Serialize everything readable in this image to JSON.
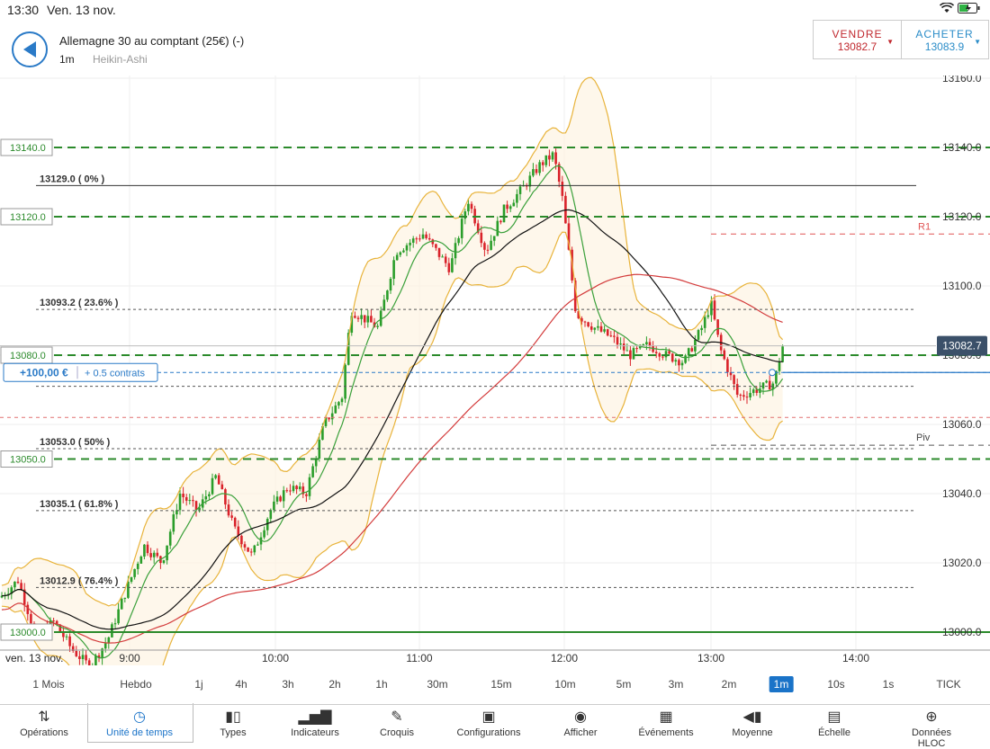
{
  "status": {
    "time": "13:30",
    "date": "Ven. 13 nov.",
    "battery_icon": "battery-charging-icon",
    "wifi_icon": "wifi-icon"
  },
  "header": {
    "title": "Allemagne 30 au comptant (25€) (-)",
    "timeframe": "1m",
    "chart_type": "Heikin-Ashi"
  },
  "trade": {
    "sell_label": "VENDRE",
    "sell_price": "13082.7",
    "buy_label": "ACHETER",
    "buy_price": "13083.9",
    "sell_color": "#c0272d",
    "buy_color": "#2a8cc8"
  },
  "chart_data": {
    "type": "candlestick",
    "price_axis": {
      "ylim": [
        12996,
        13166
      ],
      "ticks": [
        "13160.0",
        "13140.0",
        "13120.0",
        "13100.0",
        "13080.0",
        "13060.0",
        "13040.0",
        "13020.0",
        "13000.0"
      ]
    },
    "time_axis": {
      "date_label": "ven. 13 nov.",
      "ticks": [
        "9:00",
        "10:00",
        "11:00",
        "12:00",
        "13:00",
        "14:00"
      ]
    },
    "current_price": "13082.7",
    "fib_levels": [
      "13129.0 ( 0% )",
      "13093.2 ( 23.6% )",
      "13053.0 ( 50% )",
      "13035.1 ( 61.8% )",
      "13012.9 ( 76.4% )"
    ],
    "alert_levels": [
      "13140.0",
      "13120.0",
      "13080.0",
      "13050.0",
      "13000.0"
    ],
    "pivot_labels": [
      "R1",
      "Piv"
    ],
    "position": {
      "pnl": "+100,00 €",
      "size": "+ 0.5 contrats"
    },
    "colors": {
      "up": "#2a9d2a",
      "down": "#d9222a",
      "bollinger": "#e8b33a",
      "ma_black": "#111111",
      "ma_red": "#d33b3b",
      "ma_green": "#3aa03a",
      "dashed_green": "#2b8a2b"
    }
  },
  "timeframes": [
    "1 Mois",
    "Hebdo",
    "1j",
    "4h",
    "3h",
    "2h",
    "1h",
    "30m",
    "15m",
    "10m",
    "5m",
    "3m",
    "2m",
    "1m",
    "10s",
    "1s",
    "TICK"
  ],
  "selected_timeframe": "1m",
  "toolbar": [
    {
      "label": "Opérations",
      "icon": "swap-arrows-icon"
    },
    {
      "label": "Unité de temps",
      "icon": "clock-icon"
    },
    {
      "label": "Types",
      "icon": "candles-icon"
    },
    {
      "label": "Indicateurs",
      "icon": "bar-chart-icon"
    },
    {
      "label": "Croquis",
      "icon": "pencil-icon"
    },
    {
      "label": "Configurations",
      "icon": "layout-icon"
    },
    {
      "label": "Afficher",
      "icon": "eye-icon"
    },
    {
      "label": "Événements",
      "icon": "calendar-icon"
    },
    {
      "label": "Moyenne",
      "icon": "average-icon"
    },
    {
      "label": "Échelle",
      "icon": "scale-icon"
    },
    {
      "label": "Données HLOC",
      "icon": "crosshair-icon"
    }
  ]
}
